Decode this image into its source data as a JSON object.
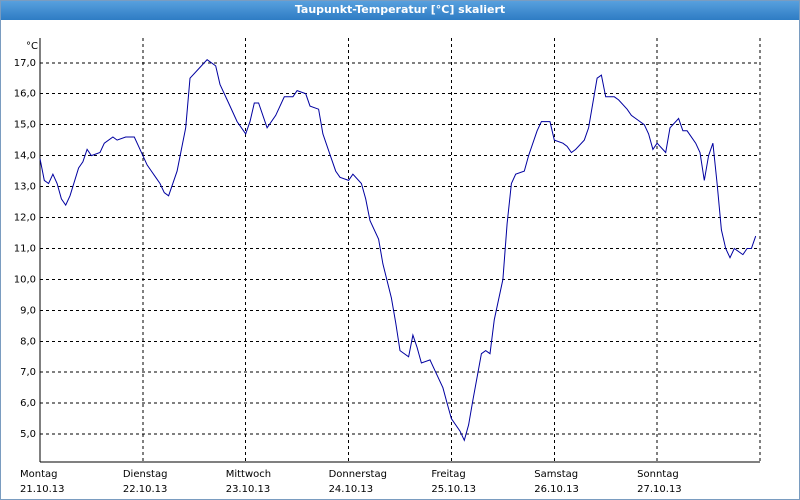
{
  "chart_data": {
    "type": "line",
    "title": "Taupunkt-Temperatur [°C] skaliert",
    "y_unit": "°C",
    "x": [
      0,
      1,
      2,
      3,
      4,
      5,
      6,
      7,
      9,
      10,
      11,
      12,
      14,
      15,
      17,
      18,
      20,
      22,
      23,
      25,
      26,
      27,
      28,
      29,
      30,
      32,
      33,
      34,
      35,
      37,
      39,
      41,
      42,
      44,
      46,
      48,
      49,
      50,
      51,
      53,
      55,
      57,
      59,
      60,
      62,
      63,
      65,
      66,
      68,
      69,
      70,
      72,
      73,
      75,
      76,
      77,
      79,
      80,
      82,
      83,
      84,
      86,
      87,
      88,
      89,
      91,
      92,
      94,
      95,
      96,
      98,
      99,
      100,
      101,
      103,
      104,
      105,
      106,
      108,
      109,
      110,
      111,
      113,
      114,
      116,
      117,
      119,
      120,
      122,
      123,
      124,
      125,
      127,
      128,
      130,
      131,
      132,
      134,
      135,
      137,
      138,
      139,
      141,
      142,
      143,
      144,
      146,
      147,
      149,
      150,
      151,
      153,
      154,
      155,
      156,
      157,
      158,
      159,
      160,
      161,
      162,
      164,
      165,
      166,
      167
    ],
    "series": [
      {
        "name": "Taupunkt",
        "color": "#0000a0",
        "values": [
          13.9,
          13.2,
          13.1,
          13.4,
          13.1,
          12.6,
          12.4,
          12.7,
          13.6,
          13.8,
          14.2,
          14.0,
          14.1,
          14.4,
          14.6,
          14.5,
          14.6,
          14.6,
          14.3,
          13.7,
          13.5,
          13.3,
          13.1,
          12.8,
          12.7,
          13.5,
          14.2,
          14.9,
          16.5,
          16.8,
          17.1,
          16.9,
          16.3,
          15.7,
          15.1,
          14.7,
          15.1,
          15.7,
          15.7,
          14.9,
          15.3,
          15.9,
          15.9,
          16.1,
          16.0,
          15.6,
          15.5,
          14.7,
          13.9,
          13.5,
          13.3,
          13.2,
          13.4,
          13.1,
          12.6,
          11.9,
          11.3,
          10.5,
          9.4,
          8.6,
          7.7,
          7.5,
          8.2,
          7.8,
          7.3,
          7.4,
          7.1,
          6.5,
          6.0,
          5.5,
          5.1,
          4.8,
          5.3,
          6.1,
          7.6,
          7.7,
          7.6,
          8.7,
          10.0,
          11.8,
          13.1,
          13.4,
          13.5,
          14.0,
          14.8,
          15.1,
          15.1,
          14.5,
          14.4,
          14.3,
          14.1,
          14.2,
          14.5,
          14.9,
          16.5,
          16.6,
          15.9,
          15.9,
          15.8,
          15.5,
          15.3,
          15.2,
          15.0,
          14.7,
          14.2,
          14.4,
          14.1,
          14.9,
          15.2,
          14.8,
          14.8,
          14.4,
          14.1,
          13.2,
          14.0,
          14.4,
          13.1,
          11.6,
          11.0,
          10.7,
          11.0,
          10.8,
          11.0,
          11.0,
          11.4
        ]
      }
    ],
    "xlim": [
      0,
      168
    ],
    "xticks": [
      {
        "value": 0,
        "label": [
          "Montag",
          "21.10.13"
        ]
      },
      {
        "value": 24,
        "label": [
          "Dienstag",
          "22.10.13"
        ]
      },
      {
        "value": 48,
        "label": [
          "Mittwoch",
          "23.10.13"
        ]
      },
      {
        "value": 72,
        "label": [
          "Donnerstag",
          "24.10.13"
        ]
      },
      {
        "value": 96,
        "label": [
          "Freitag",
          "25.10.13"
        ]
      },
      {
        "value": 120,
        "label": [
          "Samstag",
          "26.10.13"
        ]
      },
      {
        "value": 144,
        "label": [
          "Sonntag",
          "27.10.13"
        ]
      }
    ],
    "ylim": [
      4.1,
      17.8
    ],
    "yticks": [
      {
        "value": 5,
        "label": "5,0"
      },
      {
        "value": 6,
        "label": "6,0"
      },
      {
        "value": 7,
        "label": "7,0"
      },
      {
        "value": 8,
        "label": "8,0"
      },
      {
        "value": 9,
        "label": "9,0"
      },
      {
        "value": 10,
        "label": "10,0"
      },
      {
        "value": 11,
        "label": "11,0"
      },
      {
        "value": 12,
        "label": "12,0"
      },
      {
        "value": 13,
        "label": "13,0"
      },
      {
        "value": 14,
        "label": "14,0"
      },
      {
        "value": 15,
        "label": "15,0"
      },
      {
        "value": 16,
        "label": "16,0"
      },
      {
        "value": 17,
        "label": "17,0"
      }
    ],
    "grid": true
  }
}
